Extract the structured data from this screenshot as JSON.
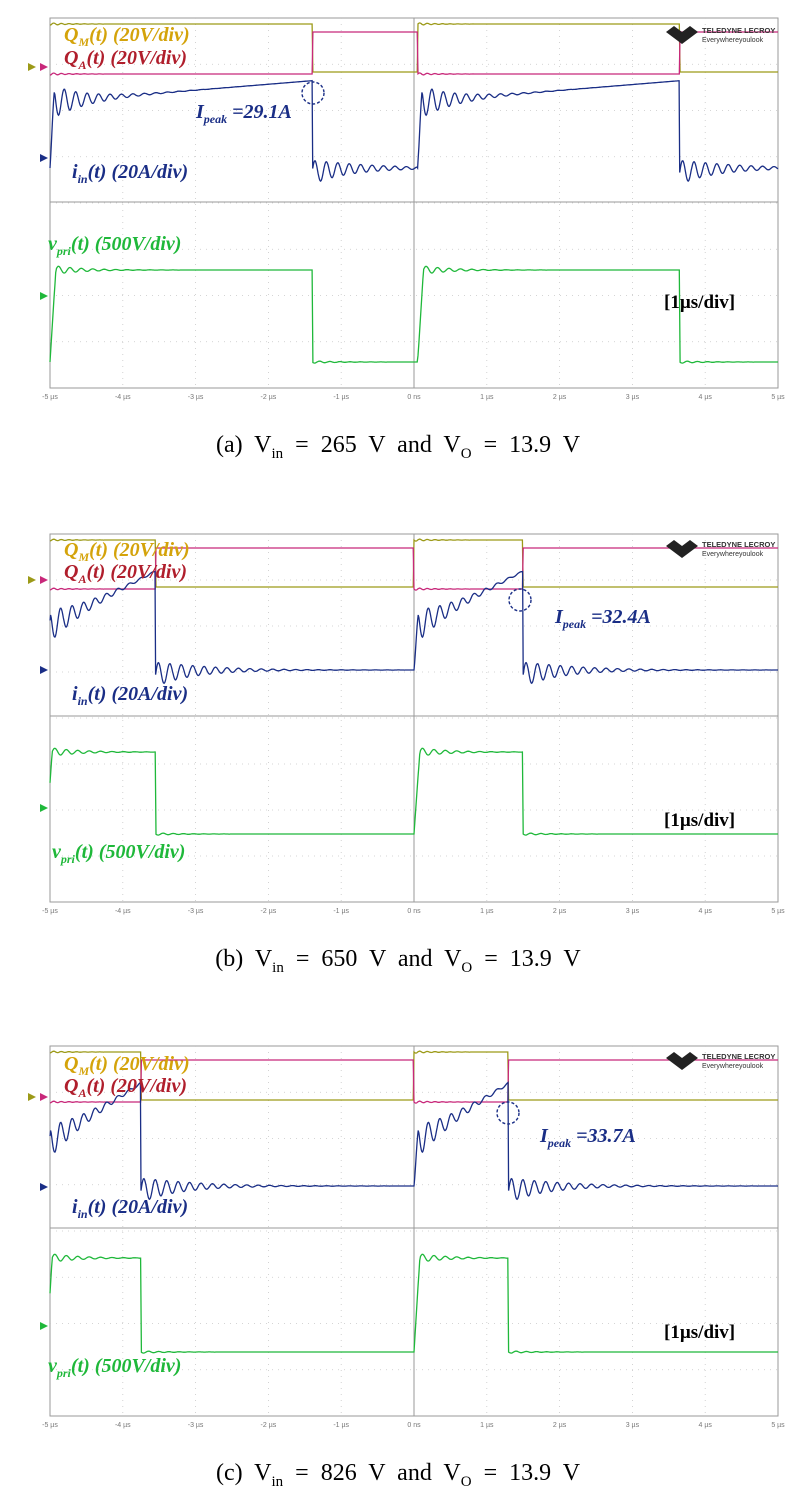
{
  "logo": {
    "brand": "TELEDYNE LECROY",
    "tagline": "Everywhereyoulook"
  },
  "time_scale": "[1µs/div]",
  "chart_data": [
    {
      "type": "line",
      "caption": {
        "prefix": "(a)",
        "vin": "265",
        "vo": "13.9"
      },
      "peak_label": "=29.1A",
      "x_ticks": [
        "-5 µs",
        "-4 µs",
        "-3 µs",
        "-2 µs",
        "-1 µs",
        "0 ns",
        "1 µs",
        "2 µs",
        "3 µs",
        "4 µs",
        "5 µs"
      ],
      "xlim": [
        -5,
        5
      ],
      "switch_off_us": [
        -1.45,
        3.65
      ],
      "switch_on_us": [
        0.05,
        5.1
      ],
      "current_start_A": 22,
      "current_peak_A": 29.1,
      "series": [
        {
          "name": "QM(t) (20V/div)",
          "color": "#9c9a18"
        },
        {
          "name": "QA(t) (20V/div)",
          "color": "#c8287a"
        },
        {
          "name": "iin(t) (20A/div)",
          "color": "#1a2e86"
        },
        {
          "name": "vpri(t) (500V/div)",
          "color": "#1fb83a"
        }
      ]
    },
    {
      "type": "line",
      "caption": {
        "prefix": "(b)",
        "vin": "650",
        "vo": "13.9"
      },
      "peak_label": "=32.4A",
      "x_ticks": [
        "-5 µs",
        "-4 µs",
        "-3 µs",
        "-2 µs",
        "-1 µs",
        "0 ns",
        "1 µs",
        "2 µs",
        "3 µs",
        "4 µs",
        "5 µs"
      ],
      "xlim": [
        -5,
        5
      ],
      "switch_off_us": [
        -3.55,
        1.5
      ],
      "switch_on_us": [
        0.0,
        5.05
      ],
      "current_start_A": 14,
      "current_peak_A": 32.4,
      "series": [
        {
          "name": "QM(t) (20V/div)",
          "color": "#9c9a18"
        },
        {
          "name": "QA(t) (20V/div)",
          "color": "#c8287a"
        },
        {
          "name": "iin(t) (20A/div)",
          "color": "#1a2e86"
        },
        {
          "name": "vpri(t) (500V/div)",
          "color": "#1fb83a"
        }
      ]
    },
    {
      "type": "line",
      "caption": {
        "prefix": "(c)",
        "vin": "826",
        "vo": "13.9"
      },
      "peak_label": "=33.7A",
      "x_ticks": [
        "-5 µs",
        "-4 µs",
        "-3 µs",
        "-2 µs",
        "-1 µs",
        "0 ns",
        "1 µs",
        "2 µs",
        "3 µs",
        "4 µs",
        "5 µs"
      ],
      "xlim": [
        -5,
        5
      ],
      "switch_off_us": [
        -3.7,
        1.3
      ],
      "switch_on_us": [
        0.0,
        5.05
      ],
      "current_start_A": 14,
      "current_peak_A": 33.7,
      "series": [
        {
          "name": "QM(t) (20V/div)",
          "color": "#9c9a18"
        },
        {
          "name": "QA(t) (20V/div)",
          "color": "#c8287a"
        },
        {
          "name": "iin(t) (20A/div)",
          "color": "#1a2e86"
        },
        {
          "name": "vpri(t) (500V/div)",
          "color": "#1fb83a"
        }
      ]
    }
  ]
}
